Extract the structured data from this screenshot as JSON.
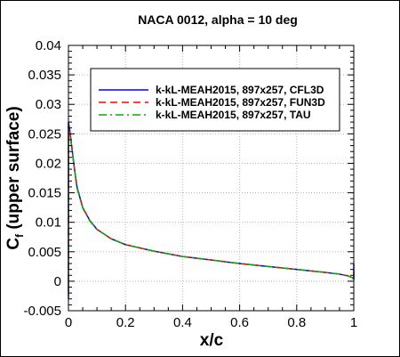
{
  "chart_data": {
    "type": "line",
    "title": "NACA 0012, alpha = 10 deg",
    "xlabel": "x/c",
    "ylabel": {
      "main": "C",
      "sub": "f",
      "rest": " (upper surface)"
    },
    "xlim": [
      0,
      1
    ],
    "ylim": [
      -0.005,
      0.04
    ],
    "xticks": [
      0,
      0.2,
      0.4,
      0.6,
      0.8,
      1
    ],
    "xtick_labels": [
      "0",
      "0.2",
      "0.4",
      "0.6",
      "0.8",
      "1"
    ],
    "yticks": [
      -0.005,
      0,
      0.005,
      0.01,
      0.015,
      0.02,
      0.025,
      0.03,
      0.035,
      0.04
    ],
    "ytick_labels": [
      "-0.005",
      "0",
      "0.005",
      "0.01",
      "0.015",
      "0.02",
      "0.025",
      "0.03",
      "0.035",
      "0.04"
    ],
    "grid": true,
    "legend_position": "upper-right",
    "series": [
      {
        "name": "k-kL-MEAH2015, 897x257, CFL3D",
        "color": "#0000ff",
        "dash": "solid",
        "x": [
          0,
          0,
          0.005,
          0.01,
          0.02,
          0.03,
          0.05,
          0.075,
          0.1,
          0.15,
          0.2,
          0.3,
          0.4,
          0.5,
          0.6,
          0.7,
          0.8,
          0.9,
          0.95,
          0.98,
          0.995,
          1,
          1
        ],
        "y": [
          -0.003,
          0.027,
          0.0255,
          0.0235,
          0.0195,
          0.016,
          0.0125,
          0.0103,
          0.0088,
          0.0072,
          0.0062,
          0.0051,
          0.0042,
          0.0036,
          0.003,
          0.0025,
          0.002,
          0.0015,
          0.0012,
          0.0009,
          0.0006,
          0.0003,
          0.003
        ]
      },
      {
        "name": "k-kL-MEAH2015, 897x257, FUN3D",
        "color": "#ff0000",
        "dash": "dashed",
        "x": [
          0,
          0,
          0.005,
          0.01,
          0.02,
          0.03,
          0.05,
          0.075,
          0.1,
          0.15,
          0.2,
          0.3,
          0.4,
          0.5,
          0.6,
          0.7,
          0.8,
          0.9,
          0.95,
          0.98,
          0.995,
          1,
          1
        ],
        "y": [
          -0.002,
          0.0265,
          0.0252,
          0.0233,
          0.0194,
          0.0159,
          0.0125,
          0.0103,
          0.0088,
          0.0072,
          0.0062,
          0.0051,
          0.0042,
          0.0036,
          0.003,
          0.0025,
          0.002,
          0.0015,
          0.0012,
          0.0009,
          0.0006,
          0.0003,
          0.002
        ]
      },
      {
        "name": "k-kL-MEAH2015, 897x257, TAU",
        "color": "#00b000",
        "dash": "dashdot",
        "x": [
          0,
          0,
          0.005,
          0.01,
          0.02,
          0.03,
          0.05,
          0.075,
          0.1,
          0.15,
          0.2,
          0.3,
          0.4,
          0.5,
          0.6,
          0.7,
          0.8,
          0.9,
          0.95,
          0.98,
          0.995,
          1,
          1
        ],
        "y": [
          -0.001,
          0.026,
          0.025,
          0.0232,
          0.0193,
          0.0158,
          0.0124,
          0.0102,
          0.0088,
          0.0072,
          0.0062,
          0.0051,
          0.0042,
          0.0036,
          0.003,
          0.0025,
          0.002,
          0.0015,
          0.0012,
          0.0009,
          0.0006,
          0.0004,
          0.0015
        ]
      }
    ]
  }
}
